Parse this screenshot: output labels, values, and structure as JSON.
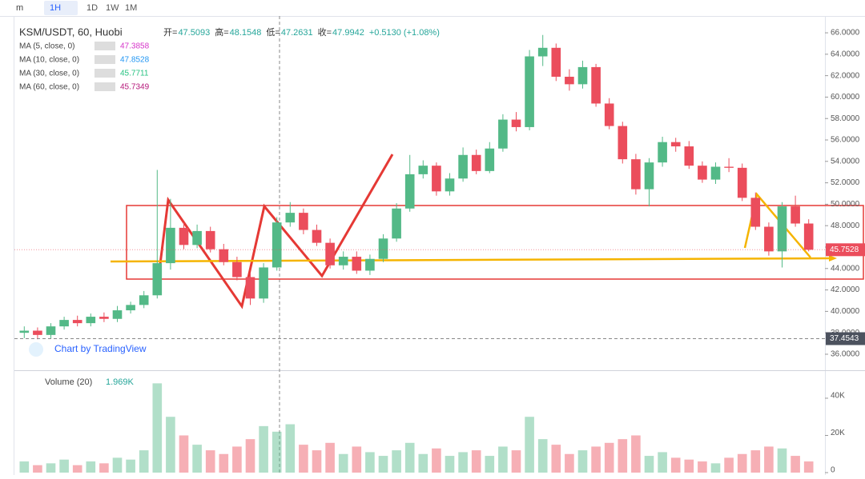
{
  "toolbar": {
    "interval_menu": "m",
    "buttons": [
      "1H",
      "1D",
      "1W",
      "1M"
    ]
  },
  "legend": {
    "symbol": "KSM/USDT, 60, Huobi",
    "ohlc": [
      {
        "label": "开=",
        "value": "47.5093"
      },
      {
        "label": "高=",
        "value": "48.1548"
      },
      {
        "label": "低=",
        "value": "47.2631"
      },
      {
        "label": "收=",
        "value": "47.9942"
      }
    ],
    "change": "+0.5130 (+1.08%)",
    "indicators": [
      {
        "name": "MA (5, close, 0)",
        "value": "47.3858",
        "color": "#d633c9"
      },
      {
        "name": "MA (10, close, 0)",
        "value": "47.8528",
        "color": "#2196f3"
      },
      {
        "name": "MA (30, close, 0)",
        "value": "45.7711",
        "color": "#26c281"
      },
      {
        "name": "MA (60, close, 0)",
        "value": "45.7349",
        "color": "#b5187a"
      }
    ],
    "volume_name": "Volume (20)",
    "volume_value": "1.969K"
  },
  "watermark": "Chart by TradingView",
  "chart_data": {
    "type": "candlestick",
    "up_color": "#53b987",
    "down_color": "#eb4d5c",
    "open": [
      38.0,
      38.2,
      37.8,
      38.6,
      39.2,
      38.9,
      39.5,
      39.3,
      40.1,
      40.6,
      41.5,
      44.5,
      47.8,
      46.2,
      47.5,
      45.8,
      44.6,
      43.2,
      41.2,
      44.1,
      48.3,
      49.2,
      47.6,
      46.4,
      44.3,
      45.1,
      43.8,
      44.9,
      46.8,
      49.6,
      52.8,
      53.6,
      51.2,
      52.4,
      54.6,
      53.1,
      55.2,
      57.9,
      57.2,
      63.8,
      64.6,
      61.9,
      61.2,
      62.8,
      59.4,
      57.3,
      54.2,
      51.4,
      53.9,
      55.8,
      55.4,
      53.6,
      52.3,
      53.5,
      53.4,
      50.6,
      47.9,
      45.6,
      49.8,
      48.2
    ],
    "high": [
      38.6,
      38.5,
      38.9,
      39.5,
      39.6,
      39.8,
      39.9,
      40.5,
      40.9,
      41.9,
      53.2,
      50.5,
      48.3,
      48.1,
      47.9,
      46.3,
      45.1,
      43.6,
      44.5,
      48.8,
      50.2,
      49.6,
      48.1,
      46.8,
      45.6,
      45.6,
      45.3,
      47.2,
      50.1,
      54.6,
      54.1,
      53.9,
      52.9,
      55.3,
      55.1,
      55.8,
      58.4,
      58.6,
      64.4,
      65.8,
      65.0,
      62.6,
      63.4,
      63.1,
      59.9,
      57.7,
      54.7,
      54.3,
      56.3,
      56.2,
      55.9,
      54.0,
      53.9,
      54.3,
      53.8,
      51.1,
      48.3,
      50.2,
      50.8,
      48.6
    ],
    "low": [
      37.5,
      37.4,
      37.5,
      38.3,
      38.6,
      38.6,
      39.0,
      39.0,
      39.8,
      40.3,
      41.2,
      43.9,
      45.8,
      45.9,
      45.5,
      44.3,
      42.9,
      40.6,
      40.8,
      43.8,
      47.9,
      47.2,
      46.1,
      44.0,
      43.9,
      43.5,
      43.4,
      44.6,
      46.5,
      49.3,
      52.4,
      50.8,
      50.8,
      52.1,
      52.8,
      52.9,
      54.9,
      56.8,
      56.9,
      62.9,
      61.5,
      60.6,
      60.8,
      59.1,
      57.0,
      53.8,
      50.9,
      49.8,
      53.5,
      54.9,
      53.3,
      52.0,
      51.9,
      53.0,
      50.3,
      47.6,
      45.2,
      44.1,
      47.9,
      45.6
    ],
    "close": [
      38.2,
      37.8,
      38.6,
      39.2,
      38.9,
      39.5,
      39.3,
      40.1,
      40.6,
      41.5,
      44.5,
      47.8,
      46.2,
      47.5,
      45.8,
      44.6,
      43.2,
      41.2,
      44.1,
      48.3,
      49.2,
      47.6,
      46.4,
      44.3,
      45.1,
      43.8,
      44.9,
      46.8,
      49.6,
      52.8,
      53.6,
      51.2,
      52.4,
      54.6,
      53.1,
      55.2,
      57.9,
      57.2,
      63.8,
      64.6,
      61.9,
      61.2,
      62.8,
      59.4,
      57.3,
      54.2,
      51.4,
      53.9,
      55.8,
      55.4,
      53.6,
      52.3,
      53.5,
      53.4,
      50.6,
      47.9,
      45.6,
      49.8,
      48.2,
      45.7528
    ],
    "volume": [
      6000,
      4000,
      5000,
      7000,
      4000,
      6000,
      5000,
      8000,
      7000,
      12000,
      48000,
      30000,
      20000,
      15000,
      12000,
      10000,
      14000,
      18000,
      25000,
      22000,
      26000,
      15000,
      12000,
      16000,
      10000,
      14000,
      11000,
      9000,
      12000,
      16000,
      10000,
      13000,
      9000,
      11000,
      12000,
      9000,
      14000,
      12000,
      30000,
      18000,
      15000,
      10000,
      12000,
      14000,
      16000,
      18000,
      20000,
      9000,
      11000,
      8000,
      7000,
      6000,
      5000,
      8000,
      10000,
      12000,
      14000,
      13000,
      9000,
      6000
    ],
    "ylim": [
      34.58,
      67.57
    ],
    "yticks": [
      {
        "value": 36,
        "label": "36.0000"
      },
      {
        "value": 38,
        "label": "38.0000"
      },
      {
        "value": 40,
        "label": "40.0000"
      },
      {
        "value": 42,
        "label": "42.0000"
      },
      {
        "value": 44,
        "label": "44.0000"
      },
      {
        "value": 46,
        "label": "46.0000"
      },
      {
        "value": 48,
        "label": "48.0000"
      },
      {
        "value": 50,
        "label": "50.0000"
      },
      {
        "value": 52,
        "label": "52.0000"
      },
      {
        "value": 54,
        "label": "54.0000"
      },
      {
        "value": 56,
        "label": "56.0000"
      },
      {
        "value": 58,
        "label": "58.0000"
      },
      {
        "value": 60,
        "label": "60.0000"
      },
      {
        "value": 62,
        "label": "62.0000"
      },
      {
        "value": 64,
        "label": "64.0000"
      },
      {
        "value": 66,
        "label": "66.0000"
      }
    ],
    "volume_ylim": [
      0,
      53750
    ],
    "volume_yticks": [
      0,
      {
        "value": 20000,
        "label": "20K"
      },
      {
        "value": 40000,
        "label": "40K"
      }
    ],
    "crosshair": 37.4543
  }
}
